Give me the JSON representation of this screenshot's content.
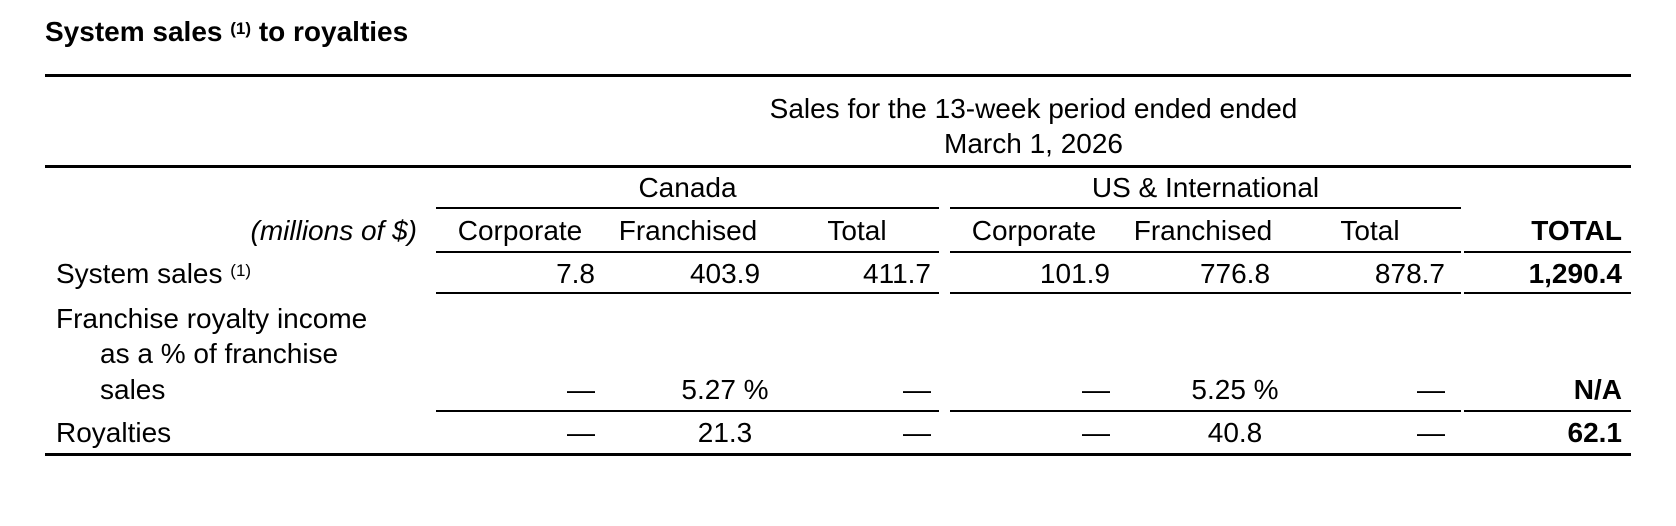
{
  "title": {
    "text": "System sales",
    "note": "(1)",
    "suffix": "to royalties"
  },
  "table": {
    "period": [
      "Sales for the 13-week period ended ended",
      "March 1, 2026"
    ],
    "groups": [
      "Canada",
      "US & International"
    ],
    "units": "(millions of $)",
    "columns": [
      "Corporate",
      "Franchised",
      "Total",
      "Corporate",
      "Franchised",
      "Total",
      "TOTAL"
    ],
    "rows": [
      {
        "label": "System sales",
        "note": "(1)",
        "cells": [
          "7.8",
          "403.9",
          "411.7",
          "101.9",
          "776.8",
          "878.7",
          "1,290.4"
        ]
      },
      {
        "label": [
          "Franchise royalty income",
          "as a % of franchise",
          "sales"
        ],
        "cells": [
          "—",
          "5.27 %",
          "—",
          "—",
          "5.25 %",
          "—",
          "N/A"
        ]
      },
      {
        "label": "Royalties",
        "cells": [
          "—",
          "21.3",
          "—",
          "—",
          "40.8",
          "—",
          "62.1"
        ]
      }
    ]
  }
}
